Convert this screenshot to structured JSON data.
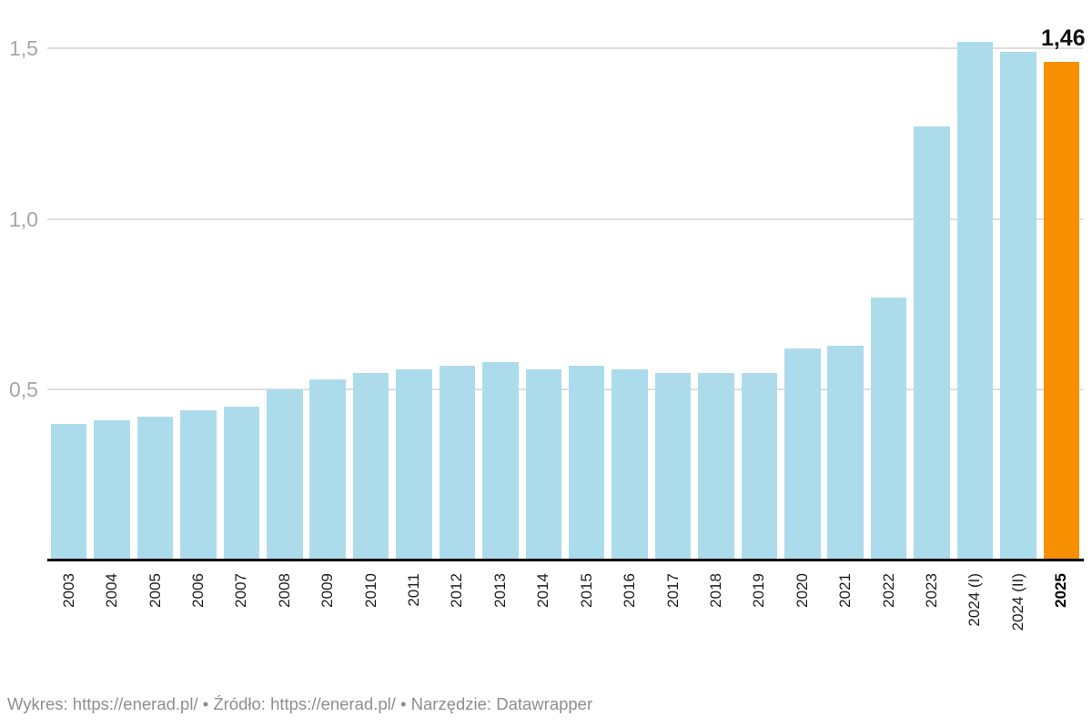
{
  "chart_data": {
    "type": "bar",
    "categories": [
      "2003",
      "2004",
      "2005",
      "2006",
      "2007",
      "2008",
      "2009",
      "2010",
      "2011",
      "2012",
      "2013",
      "2014",
      "2015",
      "2016",
      "2017",
      "2018",
      "2019",
      "2020",
      "2021",
      "2022",
      "2023",
      "2024 (I)",
      "2024 (II)",
      "2025"
    ],
    "values": [
      0.4,
      0.41,
      0.42,
      0.44,
      0.45,
      0.5,
      0.53,
      0.55,
      0.56,
      0.57,
      0.58,
      0.56,
      0.57,
      0.56,
      0.55,
      0.55,
      0.55,
      0.62,
      0.63,
      0.77,
      1.27,
      1.52,
      1.49,
      1.46
    ],
    "title": "",
    "xlabel": "",
    "ylabel": "",
    "ylim": [
      0,
      1.55
    ],
    "grid": true,
    "legend_position": "none",
    "y_ticks": [
      {
        "value": 0.5,
        "label": "0,5"
      },
      {
        "value": 1.0,
        "label": "1,0"
      },
      {
        "value": 1.5,
        "label": "1,5"
      }
    ],
    "bar_color": "#ACDCEC",
    "highlight_color": "#F79000",
    "highlight_category": "2025",
    "highlight_value_label": "1,46",
    "bold_categories": [
      "2025"
    ]
  },
  "footer": {
    "segments": [
      {
        "text": "Wykres: ",
        "link": false
      },
      {
        "text": "https://enerad.pl/",
        "link": true
      },
      {
        "text": " • Źródło: ",
        "link": false
      },
      {
        "text": "https://enerad.pl/",
        "link": true
      },
      {
        "text": " • Narzędzie: ",
        "link": false
      },
      {
        "text": "Datawrapper",
        "link": true
      }
    ]
  }
}
